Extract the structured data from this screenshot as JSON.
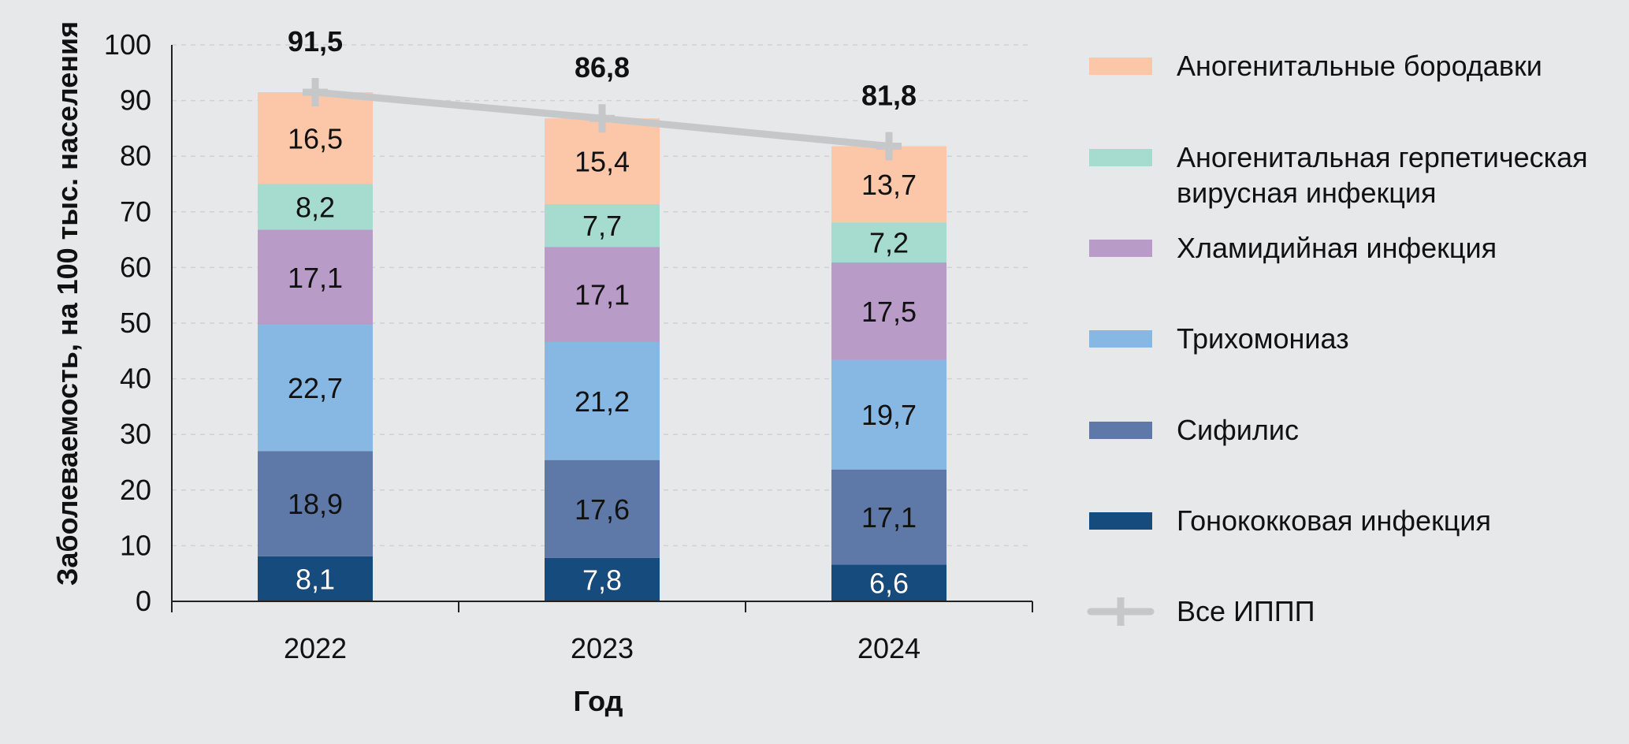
{
  "chart_data": {
    "type": "bar",
    "stacked": true,
    "categories": [
      "2022",
      "2023",
      "2024"
    ],
    "series": [
      {
        "name": "Гонококковая инфекция",
        "values": [
          8.1,
          7.8,
          6.6
        ],
        "labels": [
          "8,1",
          "7,8",
          "6,6"
        ],
        "color": "#154b7d"
      },
      {
        "name": "Сифилис",
        "values": [
          18.9,
          17.6,
          17.1
        ],
        "labels": [
          "18,9",
          "17,6",
          "17,1"
        ],
        "color": "#5e79a8"
      },
      {
        "name": "Трихомониаз",
        "values": [
          22.7,
          21.2,
          19.7
        ],
        "labels": [
          "22,7",
          "21,2",
          "19,7"
        ],
        "color": "#86b8e3"
      },
      {
        "name": "Хламидийная инфекция",
        "values": [
          17.1,
          17.1,
          17.5
        ],
        "labels": [
          "17,1",
          "17,1",
          "17,5"
        ],
        "color": "#b99bc8"
      },
      {
        "name": "Аногенитальная герпетическая вирусная инфекция",
        "legend_lines": [
          "Аногенитальная герпетическая",
          "вирусная инфекция"
        ],
        "values": [
          8.2,
          7.7,
          7.2
        ],
        "labels": [
          "8,2",
          "7,7",
          "7,2"
        ],
        "color": "#a6dbd0"
      },
      {
        "name": "Аногенитальные бородавки",
        "values": [
          16.5,
          15.4,
          13.7
        ],
        "labels": [
          "16,5",
          "15,4",
          "13,7"
        ],
        "color": "#fbc7a8"
      }
    ],
    "line_series": {
      "name": "Все ИППП",
      "values": [
        91.5,
        86.8,
        81.8
      ],
      "labels": [
        "91,5",
        "86,8",
        "81,8"
      ],
      "color": "#c6c7c9"
    },
    "xlabel": "Год",
    "ylabel": "Заболеваемость, на 100 тыс. населения",
    "ylim": [
      0,
      100
    ],
    "yticks": [
      0,
      10,
      20,
      30,
      40,
      50,
      60,
      70,
      80,
      90,
      100
    ],
    "grid": true,
    "legend_position": "right"
  }
}
